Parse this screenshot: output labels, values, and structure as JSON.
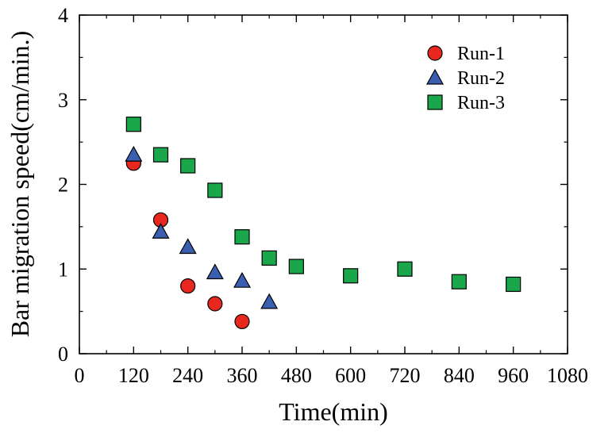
{
  "chart_data": {
    "type": "scatter",
    "xlabel": "Time(min)",
    "ylabel": "Bar migration speed(cm/min.)",
    "xlim": [
      0,
      1080
    ],
    "ylim": [
      0,
      4
    ],
    "xticks": [
      0,
      120,
      240,
      360,
      480,
      600,
      720,
      840,
      960,
      1080
    ],
    "yticks": [
      0,
      1,
      2,
      3,
      4
    ],
    "grid": false,
    "legend_position": "top-right",
    "series": [
      {
        "name": "Run-1",
        "marker": "circle",
        "color": "#e8281e",
        "x": [
          120,
          180,
          240,
          300,
          360
        ],
        "y": [
          2.25,
          1.58,
          0.8,
          0.59,
          0.38
        ]
      },
      {
        "name": "Run-2",
        "marker": "triangle",
        "color": "#3a5fb0",
        "x": [
          120,
          180,
          240,
          300,
          360,
          420
        ],
        "y": [
          2.35,
          1.44,
          1.26,
          0.96,
          0.86,
          0.61
        ]
      },
      {
        "name": "Run-3",
        "marker": "square",
        "color": "#1aa64a",
        "x": [
          120,
          180,
          240,
          300,
          360,
          420,
          480,
          600,
          720,
          840,
          960
        ],
        "y": [
          2.71,
          2.35,
          2.22,
          1.93,
          1.38,
          1.13,
          1.03,
          0.92,
          1.0,
          0.85,
          0.82
        ]
      }
    ]
  }
}
